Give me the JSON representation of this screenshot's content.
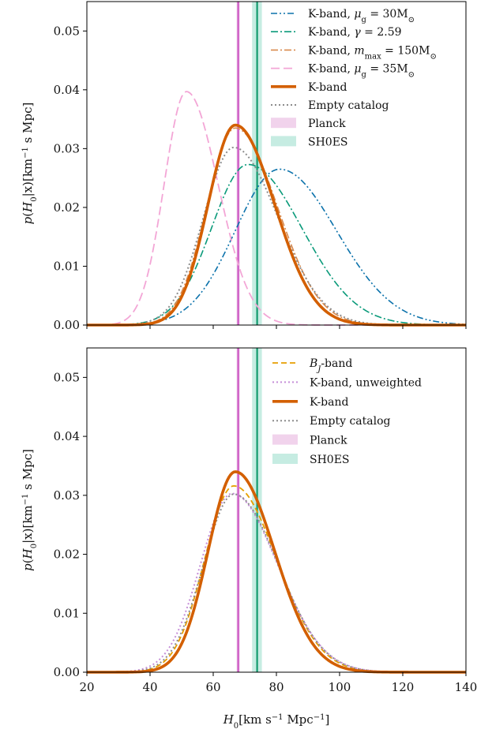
{
  "chart_data": [
    {
      "type": "line",
      "panel": "top",
      "ylabel": "p(H₀|x)[km⁻¹ s Mpc]",
      "xlabel": "",
      "xlim": [
        20,
        140
      ],
      "ylim": [
        0,
        0.055
      ],
      "xticks": [
        20,
        40,
        60,
        80,
        100,
        120,
        140
      ],
      "yticks": [
        0.0,
        0.01,
        0.02,
        0.03,
        0.04,
        0.05
      ],
      "ytick_labels": [
        "0.00",
        "0.01",
        "0.02",
        "0.03",
        "0.04",
        "0.05"
      ],
      "legend_position": "top-right",
      "series": [
        {
          "name": "K-band, μg = 30M⊙",
          "color": "#0b72ab",
          "style": "dashdotdot",
          "width": 1.6,
          "peak": 0.0265,
          "center": 81.0,
          "sigma_left": 14.0,
          "sigma_right": 18.0
        },
        {
          "name": "K-band, γ = 2.59",
          "color": "#0a9a7a",
          "style": "dashdot",
          "width": 1.6,
          "peak": 0.0273,
          "center": 71.0,
          "sigma_left": 11.5,
          "sigma_right": 17.0
        },
        {
          "name": "K-band, mmax = 150M⊙",
          "color": "#d98a4e",
          "style": "dashdot",
          "width": 1.6,
          "peak": 0.0335,
          "center": 67.0,
          "sigma_left": 9.0,
          "sigma_right": 13.2
        },
        {
          "name": "K-band, μg = 35M⊙",
          "color": "#f3a6d6",
          "style": "longdash",
          "width": 1.8,
          "peak": 0.0397,
          "center": 51.5,
          "sigma_left": 7.0,
          "sigma_right": 10.0
        },
        {
          "name": "K-band",
          "color": "#d35f00",
          "style": "solid",
          "width": 3.6,
          "peak": 0.034,
          "center": 67.0,
          "sigma_left": 8.6,
          "sigma_right": 12.4
        },
        {
          "name": "Empty catalog",
          "color": "#8c8c8c",
          "style": "dotted",
          "width": 2.0,
          "peak": 0.0302,
          "center": 66.5,
          "sigma_left": 9.6,
          "sigma_right": 14.0
        }
      ],
      "bands": [
        {
          "name": "Planck",
          "x0": 67.4,
          "x1": 68.4,
          "line": 67.9,
          "fill": "#f1d3ec",
          "line_color": "#cc55c3"
        },
        {
          "name": "SH0ES",
          "x0": 72.3,
          "x1": 75.4,
          "line": 73.9,
          "fill": "#c6ece2",
          "line_color": "#119a6e"
        }
      ]
    },
    {
      "type": "line",
      "panel": "bottom",
      "ylabel": "p(H₀|x)[km⁻¹ s Mpc]",
      "xlabel": "H₀[km s⁻¹ Mpc⁻¹]",
      "xlim": [
        20,
        140
      ],
      "ylim": [
        0,
        0.055
      ],
      "xticks": [
        20,
        40,
        60,
        80,
        100,
        120,
        140
      ],
      "yticks": [
        0.0,
        0.01,
        0.02,
        0.03,
        0.04,
        0.05
      ],
      "ytick_labels": [
        "0.00",
        "0.01",
        "0.02",
        "0.03",
        "0.04",
        "0.05"
      ],
      "legend_position": "top-right",
      "series": [
        {
          "name": "BJ-band",
          "color": "#e69f00",
          "style": "dashed",
          "width": 1.8,
          "peak": 0.0316,
          "center": 66.5,
          "sigma_left": 9.2,
          "sigma_right": 13.6
        },
        {
          "name": "K-band, unweighted",
          "color": "#c58ed8",
          "style": "dotted",
          "width": 2.0,
          "peak": 0.0303,
          "center": 66.0,
          "sigma_left": 10.0,
          "sigma_right": 14.3
        },
        {
          "name": "K-band",
          "color": "#d35f00",
          "style": "solid",
          "width": 3.6,
          "peak": 0.034,
          "center": 67.0,
          "sigma_left": 8.6,
          "sigma_right": 12.4
        },
        {
          "name": "Empty catalog",
          "color": "#8c8c8c",
          "style": "dotted",
          "width": 2.0,
          "peak": 0.0302,
          "center": 66.5,
          "sigma_left": 9.6,
          "sigma_right": 14.0
        }
      ],
      "bands": [
        {
          "name": "Planck",
          "x0": 67.4,
          "x1": 68.4,
          "line": 67.9,
          "fill": "#f1d3ec",
          "line_color": "#cc55c3"
        },
        {
          "name": "SH0ES",
          "x0": 72.3,
          "x1": 75.4,
          "line": 73.9,
          "fill": "#c6ece2",
          "line_color": "#119a6e"
        }
      ]
    }
  ]
}
